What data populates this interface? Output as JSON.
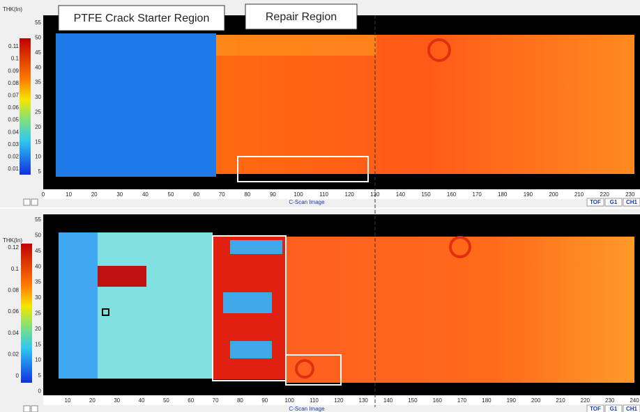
{
  "annotations": {
    "left_label": "PTFE Crack Starter Region",
    "right_label": "Repair Region"
  },
  "panels": [
    {
      "colorbar": {
        "title": "THK(In)",
        "ticks": [
          "0.11",
          "0.1",
          "0.09",
          "0.08",
          "0.07",
          "0.06",
          "0.05",
          "0.04",
          "0.03",
          "0.02",
          "0.01"
        ]
      },
      "y_ticks": [
        "55",
        "50",
        "45",
        "40",
        "35",
        "30",
        "25",
        "20",
        "15",
        "10",
        "5"
      ],
      "x_ticks": [
        "0",
        "10",
        "20",
        "30",
        "40",
        "50",
        "60",
        "70",
        "80",
        "90",
        "100",
        "110",
        "120",
        "130",
        "140",
        "150",
        "160",
        "170",
        "180",
        "190",
        "200",
        "210",
        "220",
        "230"
      ],
      "caption": "C-Scan Image",
      "tabs": [
        "TOF",
        "G1",
        "CH1"
      ]
    },
    {
      "colorbar": {
        "title": "THK(In)",
        "ticks": [
          "0.12",
          "0.1",
          "0.08",
          "0.06",
          "0.04",
          "0.02",
          "0"
        ]
      },
      "y_ticks": [
        "55",
        "50",
        "45",
        "40",
        "35",
        "30",
        "25",
        "20",
        "15",
        "10",
        "5",
        "0"
      ],
      "x_ticks": [
        "10",
        "20",
        "30",
        "40",
        "50",
        "60",
        "70",
        "80",
        "90",
        "100",
        "110",
        "120",
        "130",
        "140",
        "150",
        "160",
        "170",
        "180",
        "190",
        "200",
        "210",
        "220",
        "230",
        "240"
      ],
      "caption": "C-Scan Image",
      "tabs": [
        "TOF",
        "G1",
        "CH1"
      ]
    }
  ]
}
